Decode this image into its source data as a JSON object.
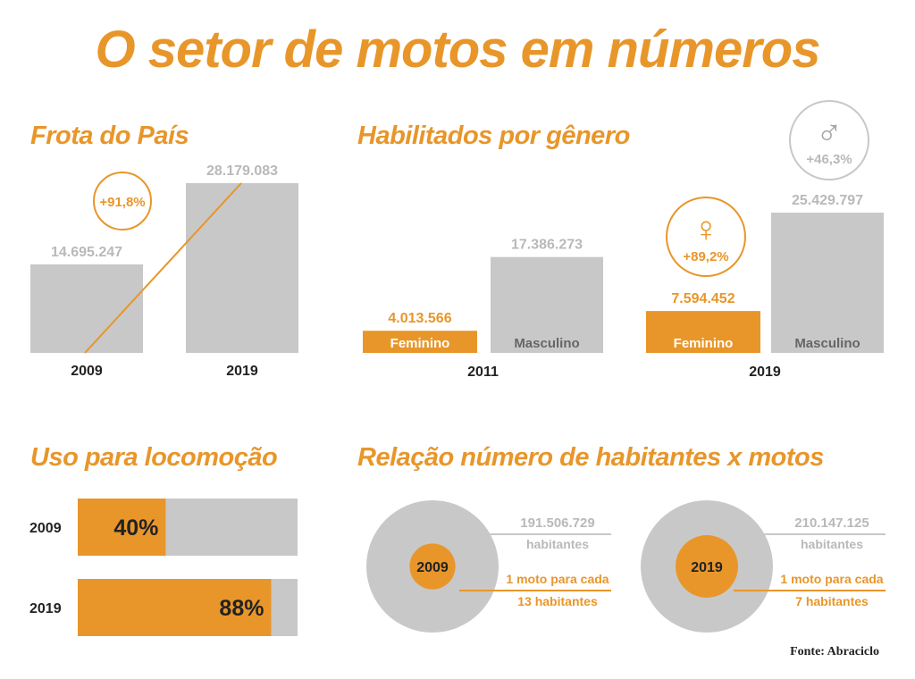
{
  "title": "O setor de motos em números",
  "source": "Fonte: Abraciclo",
  "colors": {
    "accent": "#e8962a",
    "bar": "#c8c8c8",
    "label_gray": "#b9b9b9",
    "dark": "#222222"
  },
  "sections": {
    "frota": "Frota do País",
    "habilitados": "Habilitados por gênero",
    "uso": "Uso para locomoção",
    "relacao": "Relação número de habitantes x motos"
  },
  "chart_data": [
    {
      "id": "frota",
      "type": "bar",
      "title": "Frota do País",
      "categories": [
        "2009",
        "2019"
      ],
      "values": [
        14695247,
        28179083
      ],
      "value_labels": [
        "14.695.247",
        "28.179.083"
      ],
      "growth_label": "+91,8%",
      "ylim": [
        0,
        30000000
      ]
    },
    {
      "id": "habilitados",
      "type": "bar",
      "title": "Habilitados por gênero",
      "groups": [
        {
          "year": "2011",
          "bars": [
            {
              "label": "Feminino",
              "value": 4013566,
              "value_label": "4.013.566",
              "highlight": true
            },
            {
              "label": "Masculino",
              "value": 17386273,
              "value_label": "17.386.273",
              "highlight": false
            }
          ]
        },
        {
          "year": "2019",
          "bars": [
            {
              "label": "Feminino",
              "value": 7594452,
              "value_label": "7.594.452",
              "highlight": true
            },
            {
              "label": "Masculino",
              "value": 25429797,
              "value_label": "25.429.797",
              "highlight": false
            }
          ]
        }
      ],
      "female_growth": "+89,2%",
      "male_growth": "+46,3%",
      "female_symbol": "♀",
      "male_symbol": "♂",
      "ylim": [
        0,
        30000000
      ]
    },
    {
      "id": "uso",
      "type": "bar",
      "orientation": "horizontal",
      "title": "Uso para locomoção",
      "categories": [
        "2009",
        "2019"
      ],
      "values": [
        40,
        88
      ],
      "value_labels": [
        "40%",
        "88%"
      ],
      "xlim": [
        0,
        100
      ]
    },
    {
      "id": "relacao",
      "type": "pie",
      "title": "Relação número de habitantes x motos",
      "items": [
        {
          "year": "2009",
          "population": "191.506.729",
          "population_label": "habitantes",
          "ratio_line1": "1 moto para cada",
          "ratio_line2": "13 habitantes",
          "ratio": 13
        },
        {
          "year": "2019",
          "population": "210.147.125",
          "population_label": "habitantes",
          "ratio_line1": "1 moto para cada",
          "ratio_line2": "7 habitantes",
          "ratio": 7
        }
      ]
    }
  ]
}
